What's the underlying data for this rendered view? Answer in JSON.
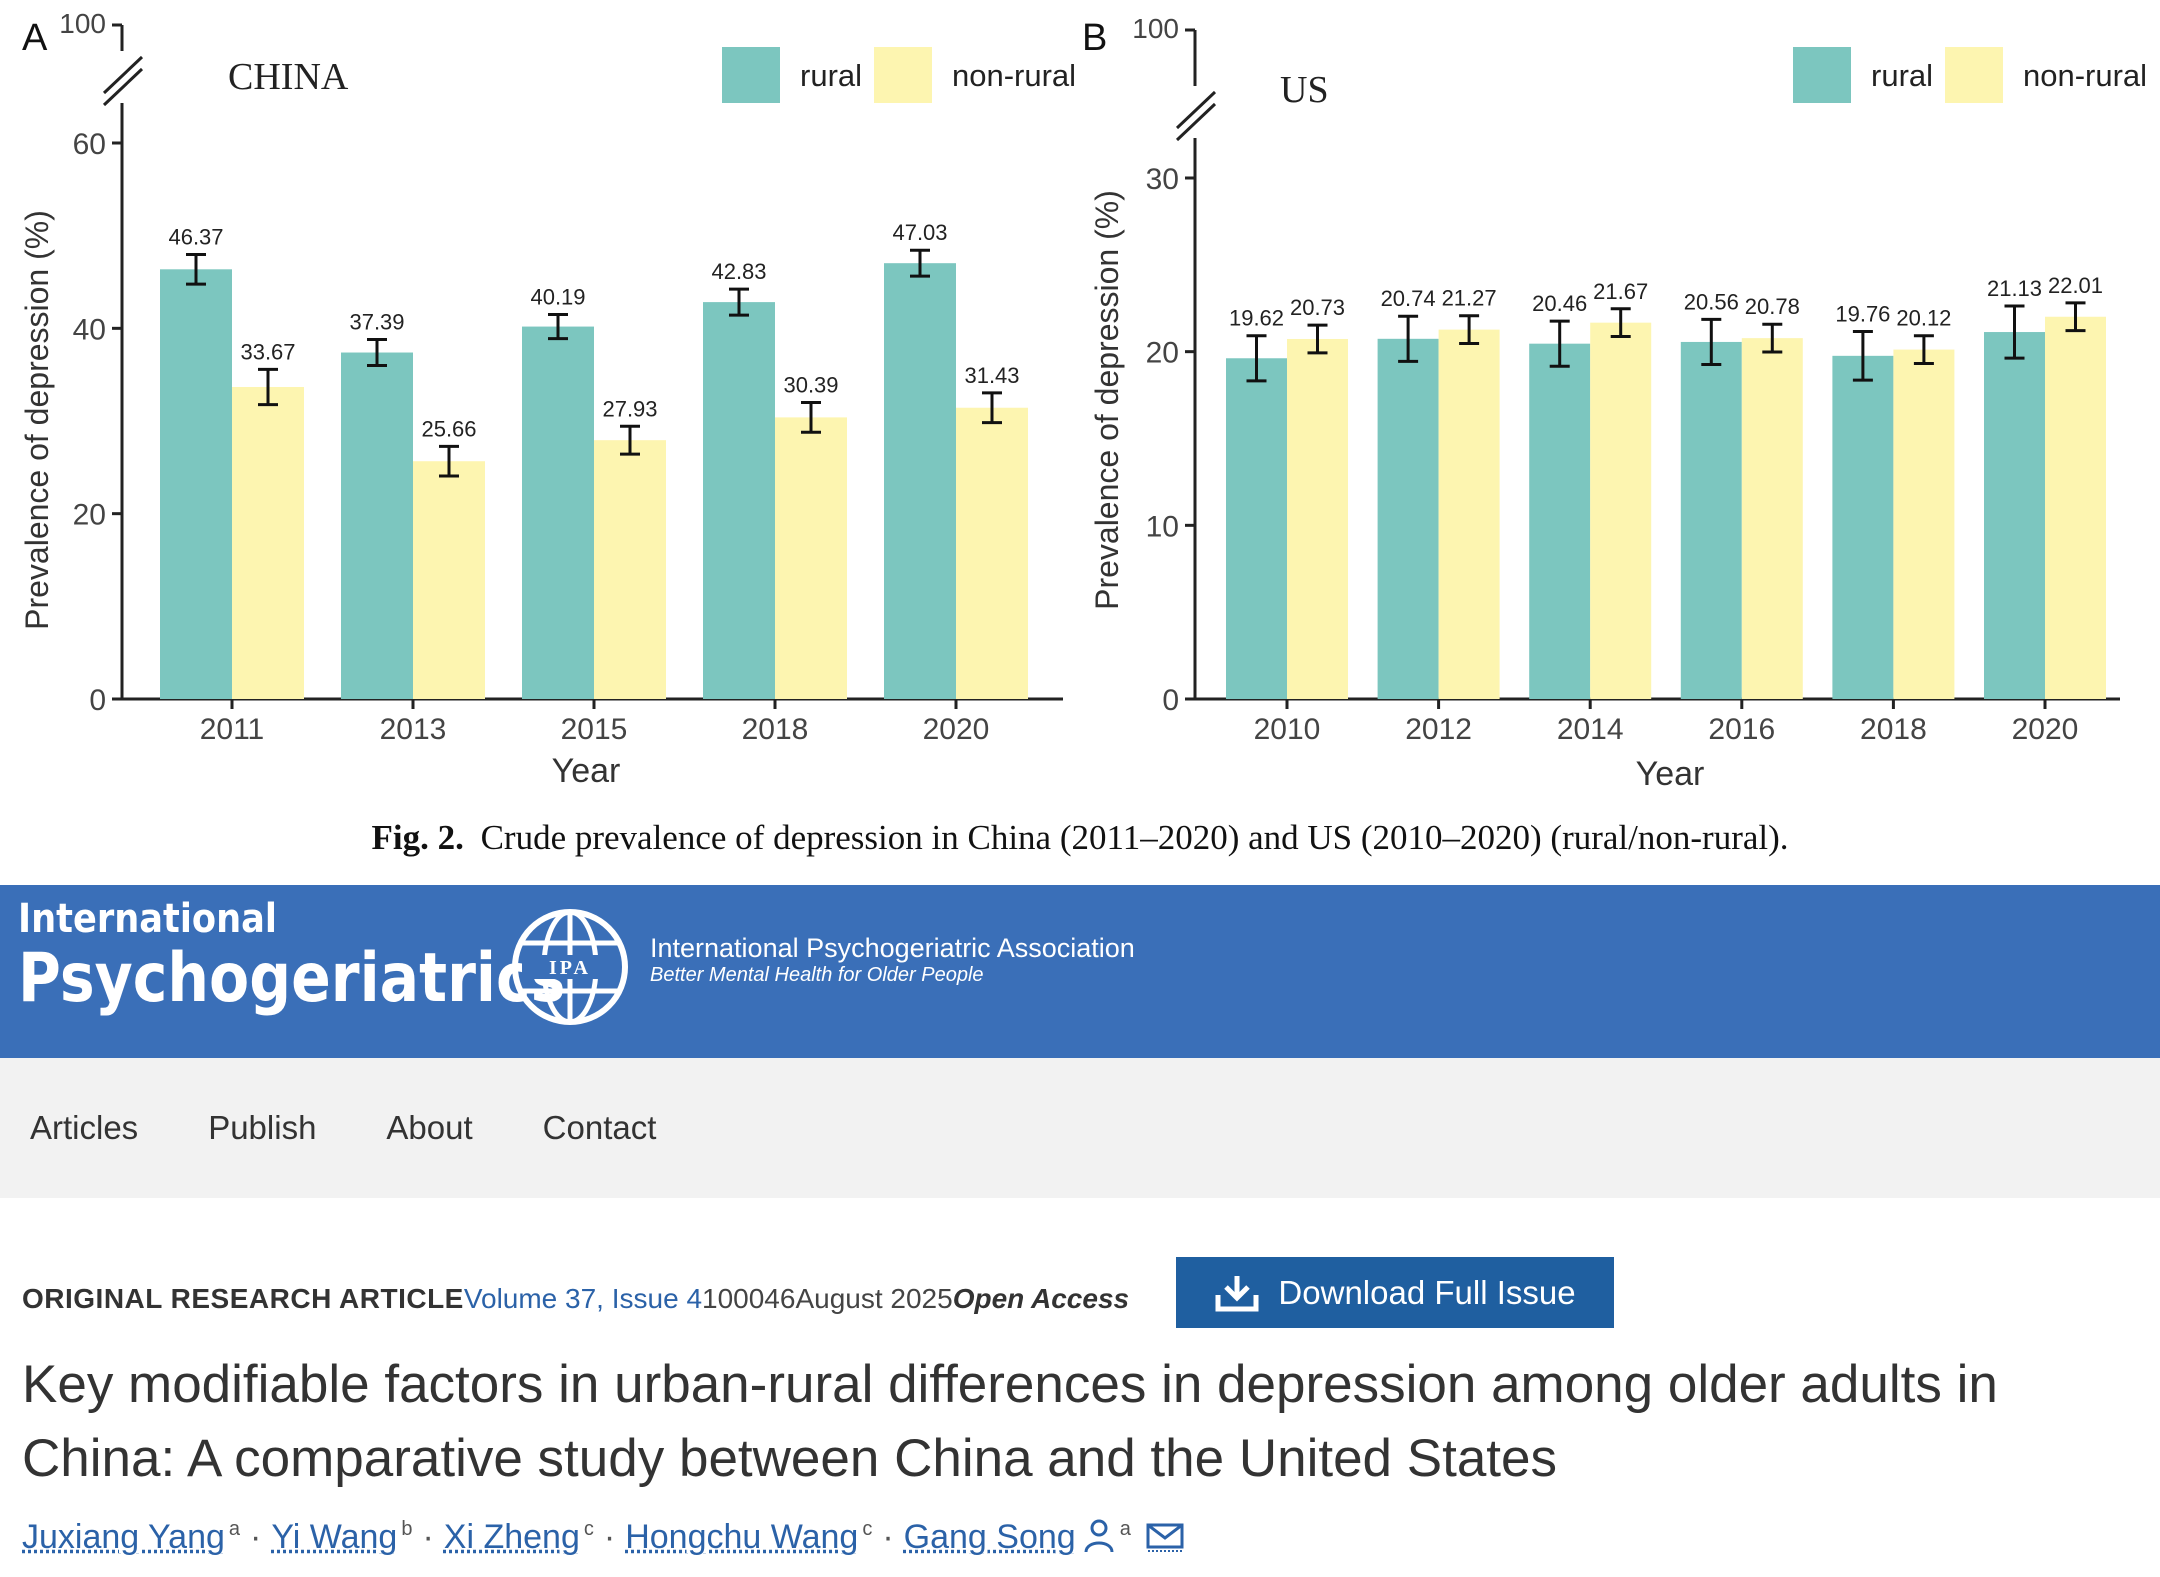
{
  "chart_data": [
    {
      "panel": "A",
      "type": "bar",
      "title": "CHINA",
      "xlabel": "Year",
      "ylabel": "Prevalence of depression (%)",
      "categories": [
        "2011",
        "2013",
        "2015",
        "2018",
        "2020"
      ],
      "series": [
        {
          "name": "rural",
          "values": [
            46.37,
            37.39,
            40.19,
            42.83,
            47.03
          ],
          "ci": [
            1.6,
            1.4,
            1.3,
            1.4,
            1.4
          ],
          "color": "#7cc6bf"
        },
        {
          "name": "non-rural",
          "values": [
            33.67,
            25.66,
            27.93,
            30.39,
            31.43
          ],
          "ci": [
            1.9,
            1.6,
            1.5,
            1.6,
            1.6
          ],
          "color": "#fdf5b0"
        }
      ],
      "labels": [
        [
          "46.37",
          "37.39",
          "40.19",
          "42.83",
          "47.03"
        ],
        [
          "33.67",
          "25.66",
          "27.93",
          "30.39",
          "31.43"
        ]
      ],
      "ylim": [
        0,
        60
      ],
      "yticks": [
        "0",
        "20",
        "40",
        "60"
      ],
      "ybreak_label": "100",
      "legend": [
        "rural",
        "non-rural"
      ]
    },
    {
      "panel": "B",
      "type": "bar",
      "title": "US",
      "xlabel": "Year",
      "ylabel": "Prevalence of depression (%)",
      "categories": [
        "2010",
        "2012",
        "2014",
        "2016",
        "2018",
        "2020"
      ],
      "series": [
        {
          "name": "rural",
          "values": [
            19.62,
            20.74,
            20.46,
            20.56,
            19.76,
            21.13
          ],
          "ci": [
            1.3,
            1.3,
            1.3,
            1.3,
            1.4,
            1.5
          ],
          "color": "#7cc6bf"
        },
        {
          "name": "non-rural",
          "values": [
            20.73,
            21.27,
            21.67,
            20.78,
            20.12,
            22.01
          ],
          "ci": [
            0.8,
            0.8,
            0.8,
            0.8,
            0.8,
            0.8
          ],
          "color": "#fdf5b0"
        }
      ],
      "labels": [
        [
          "19.62",
          "20.74",
          "20.46",
          "20.56",
          "19.76",
          "21.13"
        ],
        [
          "20.73",
          "21.27",
          "21.67",
          "20.78",
          "20.12",
          "22.01"
        ]
      ],
      "ylim": [
        0,
        30
      ],
      "yticks": [
        "0",
        "10",
        "20",
        "30"
      ],
      "ybreak_label": "100",
      "legend": [
        "rural",
        "non-rural"
      ]
    }
  ],
  "figure": {
    "label": "Fig. 2.",
    "caption": "Crude prevalence of depression in China (2011–2020) and US (2010–2020) (rural/non-rural)."
  },
  "header": {
    "journal_line1": "International",
    "journal_line2": "Psychogeriatrics",
    "ipa_badge": "IPA",
    "ipa_name": "International Psychogeriatric Association",
    "ipa_tagline": "Better Mental Health for Older People",
    "brand_color": "#3a6fb8"
  },
  "nav": {
    "items": [
      "Articles",
      "Publish",
      "About",
      "Contact"
    ]
  },
  "article": {
    "type": "ORIGINAL RESEARCH ARTICLE",
    "issue": "Volume 37, Issue 4",
    "article_id": "100046",
    "date": "August 2025",
    "access": "Open Access",
    "download_label": "Download Full Issue",
    "title": "Key modifiable factors in urban-rural differences in depression among older adults in China: A comparative study between China and the United States",
    "authors": [
      {
        "name": "Juxiang Yang",
        "aff": "a"
      },
      {
        "name": "Yi Wang",
        "aff": "b"
      },
      {
        "name": "Xi Zheng",
        "aff": "c"
      },
      {
        "name": "Hongchu Wang",
        "aff": "c"
      },
      {
        "name": "Gang Song",
        "aff": "a"
      }
    ],
    "icons": [
      "person-icon",
      "email-icon",
      "download-icon",
      "globe-icon"
    ]
  }
}
